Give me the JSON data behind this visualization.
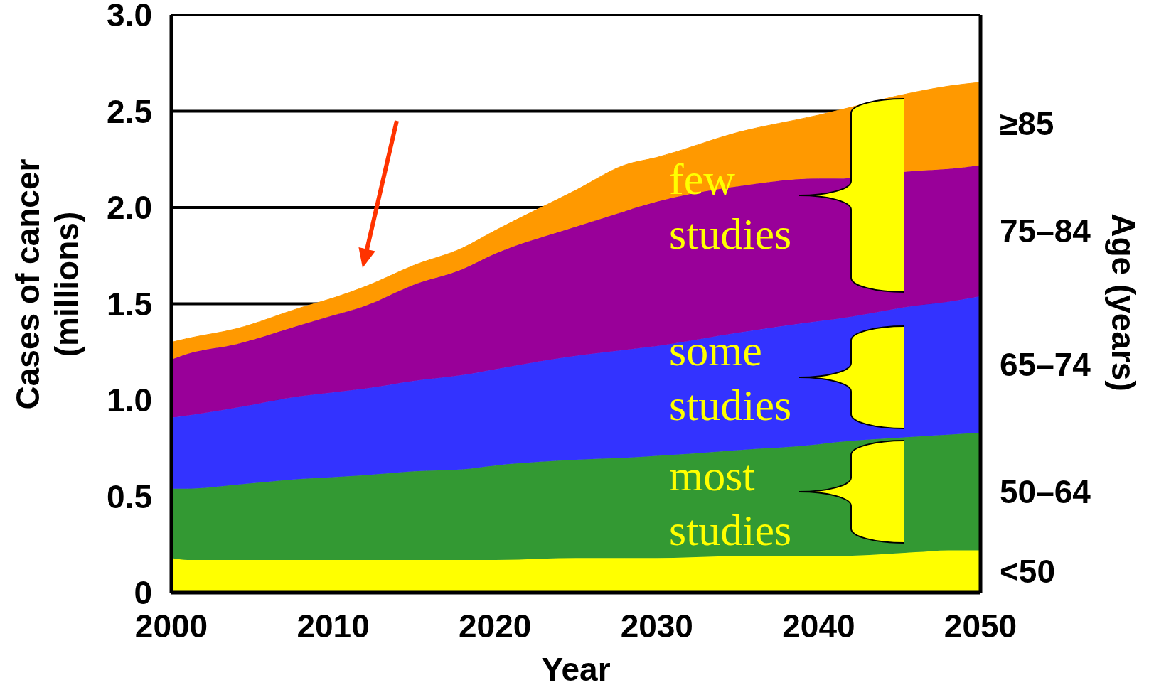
{
  "chart_data": {
    "type": "area",
    "xlabel": "Year",
    "ylabel": "Cases of cancer (millions)",
    "legend_title": "Age (years)",
    "x": [
      2000,
      2001,
      2004,
      2008,
      2010,
      2012,
      2015,
      2018,
      2020,
      2025,
      2028,
      2030,
      2035,
      2040,
      2041,
      2046,
      2048,
      2050
    ],
    "series": [
      {
        "name": "<50",
        "color": "#ffff00",
        "values": [
          0.18,
          0.17,
          0.17,
          0.17,
          0.17,
          0.17,
          0.17,
          0.17,
          0.17,
          0.18,
          0.18,
          0.18,
          0.19,
          0.19,
          0.19,
          0.21,
          0.22,
          0.22
        ]
      },
      {
        "name": "50–64",
        "color": "#339933",
        "values": [
          0.36,
          0.37,
          0.39,
          0.42,
          0.43,
          0.44,
          0.46,
          0.47,
          0.49,
          0.51,
          0.52,
          0.53,
          0.55,
          0.58,
          0.59,
          0.6,
          0.6,
          0.61
        ]
      },
      {
        "name": "65–74",
        "color": "#3333ff",
        "values": [
          0.37,
          0.38,
          0.4,
          0.43,
          0.44,
          0.45,
          0.47,
          0.49,
          0.5,
          0.54,
          0.56,
          0.57,
          0.61,
          0.64,
          0.64,
          0.68,
          0.69,
          0.71
        ]
      },
      {
        "name": "75–84",
        "color": "#990099",
        "values": [
          0.3,
          0.32,
          0.33,
          0.37,
          0.4,
          0.43,
          0.5,
          0.55,
          0.6,
          0.67,
          0.72,
          0.75,
          0.76,
          0.74,
          0.73,
          0.7,
          0.69,
          0.68
        ]
      },
      {
        "name": "≥85",
        "color": "#ff9900",
        "values": [
          0.09,
          0.08,
          0.08,
          0.09,
          0.09,
          0.1,
          0.1,
          0.11,
          0.12,
          0.19,
          0.24,
          0.23,
          0.28,
          0.33,
          0.35,
          0.41,
          0.43,
          0.43
        ]
      }
    ],
    "stacked": true,
    "xlim": [
      2000,
      2050
    ],
    "xticks": [
      2000,
      2010,
      2020,
      2030,
      2040,
      2050
    ],
    "ylim": [
      0,
      3
    ],
    "yticks": [
      0,
      0.5,
      {
        "value": 1,
        "label": "1.0"
      },
      1.5,
      {
        "value": 2,
        "label": "2.0"
      },
      2.5,
      {
        "value": 3,
        "label": "3.0"
      }
    ],
    "grid": "y",
    "annotations": [
      "few studies",
      "some studies",
      "most studies"
    ]
  }
}
